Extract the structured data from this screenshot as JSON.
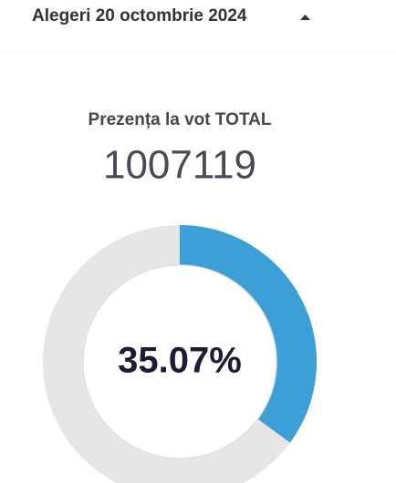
{
  "header": {
    "title": "Alegeri 20 octombrie 2024"
  },
  "turnout": {
    "label": "Prezența la vot TOTAL",
    "total": 1007119,
    "percent": 35.07,
    "percent_label": "35.07%"
  }
}
